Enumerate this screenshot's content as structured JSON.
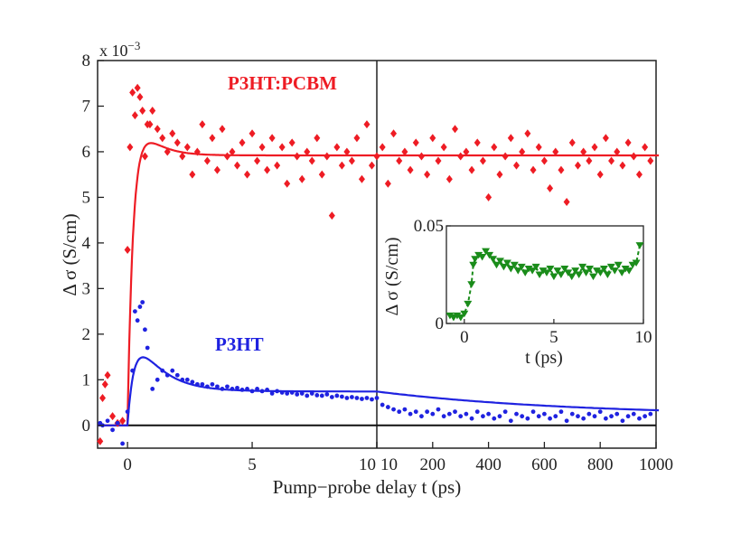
{
  "chart_data": {
    "type": "scatter",
    "multiplier": "x 10",
    "multiplier_exp": "−3",
    "ylabel": "Δ σ (S/cm)",
    "xlabel": "Pump−probe delay t (ps)",
    "ylim": [
      -0.5,
      8
    ],
    "y_ticks": [
      "0",
      "1",
      "2",
      "3",
      "4",
      "5",
      "6",
      "7",
      "8"
    ],
    "panels": [
      {
        "xlim": [
          -1.2,
          10
        ],
        "x_ticks": [
          {
            "v": 0,
            "label": "0"
          },
          {
            "v": 5,
            "label": "5"
          },
          {
            "v": 10,
            "label": "10"
          }
        ]
      },
      {
        "xlim": [
          0,
          1000
        ],
        "x_ticks": [
          {
            "v": 0,
            "label": "10"
          },
          {
            "v": 200,
            "label": "200"
          },
          {
            "v": 400,
            "label": "400"
          },
          {
            "v": 600,
            "label": "600"
          },
          {
            "v": 800,
            "label": "800"
          },
          {
            "v": 1000,
            "label": "1000"
          }
        ]
      }
    ],
    "series": [
      {
        "name": "P3HT:PCBM",
        "color": "#ee1c24",
        "marker": "diamond",
        "points_short": [
          [
            -1.1,
            -0.35
          ],
          [
            -1.0,
            0.6
          ],
          [
            -0.9,
            0.9
          ],
          [
            -0.8,
            1.1
          ],
          [
            -0.6,
            0.2
          ],
          [
            -0.4,
            0.05
          ],
          [
            -0.2,
            0.1
          ],
          [
            0.0,
            3.85
          ],
          [
            0.1,
            6.1
          ],
          [
            0.2,
            7.3
          ],
          [
            0.3,
            6.8
          ],
          [
            0.4,
            7.4
          ],
          [
            0.5,
            7.2
          ],
          [
            0.6,
            6.9
          ],
          [
            0.7,
            5.9
          ],
          [
            0.8,
            6.6
          ],
          [
            0.9,
            6.6
          ],
          [
            1.0,
            6.9
          ],
          [
            1.2,
            6.5
          ],
          [
            1.4,
            6.3
          ],
          [
            1.6,
            6.0
          ],
          [
            1.8,
            6.4
          ],
          [
            2.0,
            6.2
          ],
          [
            2.2,
            5.9
          ],
          [
            2.4,
            6.1
          ],
          [
            2.6,
            5.5
          ],
          [
            2.8,
            6.0
          ],
          [
            3.0,
            6.6
          ],
          [
            3.2,
            5.8
          ],
          [
            3.4,
            6.3
          ],
          [
            3.6,
            5.6
          ],
          [
            3.8,
            6.5
          ],
          [
            4.0,
            5.9
          ],
          [
            4.2,
            6.0
          ],
          [
            4.4,
            5.7
          ],
          [
            4.6,
            6.2
          ],
          [
            4.8,
            5.5
          ],
          [
            5.0,
            6.4
          ],
          [
            5.2,
            5.8
          ],
          [
            5.4,
            6.1
          ],
          [
            5.6,
            5.6
          ],
          [
            5.8,
            6.3
          ],
          [
            6.0,
            5.7
          ],
          [
            6.2,
            6.1
          ],
          [
            6.4,
            5.3
          ],
          [
            6.6,
            6.2
          ],
          [
            6.8,
            5.9
          ],
          [
            7.0,
            5.4
          ],
          [
            7.2,
            6.0
          ],
          [
            7.4,
            5.8
          ],
          [
            7.6,
            6.3
          ],
          [
            7.8,
            5.5
          ],
          [
            8.0,
            5.9
          ],
          [
            8.2,
            4.6
          ],
          [
            8.4,
            6.1
          ],
          [
            8.6,
            5.7
          ],
          [
            8.8,
            6.0
          ],
          [
            9.0,
            5.8
          ],
          [
            9.2,
            6.3
          ],
          [
            9.4,
            5.4
          ],
          [
            9.6,
            6.6
          ],
          [
            9.8,
            5.7
          ]
        ],
        "points_long": [
          [
            0,
            5.9
          ],
          [
            20,
            6.1
          ],
          [
            40,
            5.3
          ],
          [
            60,
            6.4
          ],
          [
            80,
            5.8
          ],
          [
            100,
            6.0
          ],
          [
            120,
            5.6
          ],
          [
            140,
            6.2
          ],
          [
            160,
            5.9
          ],
          [
            180,
            5.5
          ],
          [
            200,
            6.3
          ],
          [
            220,
            5.8
          ],
          [
            240,
            6.1
          ],
          [
            260,
            5.4
          ],
          [
            280,
            6.5
          ],
          [
            300,
            5.9
          ],
          [
            320,
            6.0
          ],
          [
            340,
            5.6
          ],
          [
            360,
            6.2
          ],
          [
            380,
            5.8
          ],
          [
            400,
            5.0
          ],
          [
            420,
            6.1
          ],
          [
            440,
            5.5
          ],
          [
            460,
            5.9
          ],
          [
            480,
            6.3
          ],
          [
            500,
            5.7
          ],
          [
            520,
            6.0
          ],
          [
            540,
            6.4
          ],
          [
            560,
            5.6
          ],
          [
            580,
            6.1
          ],
          [
            600,
            5.8
          ],
          [
            620,
            5.2
          ],
          [
            640,
            6.0
          ],
          [
            660,
            5.6
          ],
          [
            680,
            4.9
          ],
          [
            700,
            6.2
          ],
          [
            720,
            5.7
          ],
          [
            740,
            6.0
          ],
          [
            760,
            5.8
          ],
          [
            780,
            6.1
          ],
          [
            800,
            5.5
          ],
          [
            820,
            6.3
          ],
          [
            840,
            5.8
          ],
          [
            860,
            6.0
          ],
          [
            880,
            5.7
          ],
          [
            900,
            6.2
          ],
          [
            920,
            5.9
          ],
          [
            940,
            5.5
          ],
          [
            960,
            6.1
          ],
          [
            980,
            5.8
          ]
        ],
        "fit_params": {
          "tau_rise": 0.25,
          "A": 1.6,
          "tau_decay": 0.7,
          "offset": 5.92
        }
      },
      {
        "name": "P3HT",
        "color": "#1f22e0",
        "marker": "dot",
        "points_short": [
          [
            -1.1,
            0.05
          ],
          [
            -1.0,
            0.0
          ],
          [
            -0.8,
            0.1
          ],
          [
            -0.6,
            -0.1
          ],
          [
            -0.4,
            0.05
          ],
          [
            -0.2,
            -0.4
          ],
          [
            0.0,
            0.3
          ],
          [
            0.2,
            1.2
          ],
          [
            0.3,
            2.5
          ],
          [
            0.4,
            2.3
          ],
          [
            0.5,
            2.6
          ],
          [
            0.6,
            2.7
          ],
          [
            0.7,
            2.1
          ],
          [
            0.8,
            1.7
          ],
          [
            1.0,
            0.8
          ],
          [
            1.2,
            1.0
          ],
          [
            1.4,
            1.2
          ],
          [
            1.6,
            1.1
          ],
          [
            1.8,
            1.2
          ],
          [
            2.0,
            1.1
          ],
          [
            2.2,
            1.0
          ],
          [
            2.4,
            1.0
          ],
          [
            2.6,
            0.95
          ],
          [
            2.8,
            0.9
          ],
          [
            3.0,
            0.9
          ],
          [
            3.2,
            0.85
          ],
          [
            3.4,
            0.9
          ],
          [
            3.6,
            0.85
          ],
          [
            3.8,
            0.8
          ],
          [
            4.0,
            0.85
          ],
          [
            4.2,
            0.8
          ],
          [
            4.4,
            0.82
          ],
          [
            4.6,
            0.78
          ],
          [
            4.8,
            0.8
          ],
          [
            5.0,
            0.75
          ],
          [
            5.2,
            0.8
          ],
          [
            5.4,
            0.75
          ],
          [
            5.6,
            0.78
          ],
          [
            5.8,
            0.7
          ],
          [
            6.0,
            0.75
          ],
          [
            6.2,
            0.72
          ],
          [
            6.4,
            0.7
          ],
          [
            6.6,
            0.72
          ],
          [
            6.8,
            0.68
          ],
          [
            7.0,
            0.7
          ],
          [
            7.2,
            0.65
          ],
          [
            7.4,
            0.7
          ],
          [
            7.6,
            0.66
          ],
          [
            7.8,
            0.65
          ],
          [
            8.0,
            0.68
          ],
          [
            8.2,
            0.62
          ],
          [
            8.4,
            0.65
          ],
          [
            8.6,
            0.63
          ],
          [
            8.8,
            0.6
          ],
          [
            9.0,
            0.62
          ],
          [
            9.2,
            0.6
          ],
          [
            9.4,
            0.58
          ],
          [
            9.6,
            0.6
          ],
          [
            9.8,
            0.57
          ]
        ],
        "points_long": [
          [
            0,
            0.6
          ],
          [
            20,
            0.45
          ],
          [
            40,
            0.4
          ],
          [
            60,
            0.35
          ],
          [
            80,
            0.3
          ],
          [
            100,
            0.35
          ],
          [
            120,
            0.25
          ],
          [
            140,
            0.3
          ],
          [
            160,
            0.2
          ],
          [
            180,
            0.3
          ],
          [
            200,
            0.25
          ],
          [
            220,
            0.35
          ],
          [
            240,
            0.2
          ],
          [
            260,
            0.25
          ],
          [
            280,
            0.3
          ],
          [
            300,
            0.2
          ],
          [
            320,
            0.25
          ],
          [
            340,
            0.15
          ],
          [
            360,
            0.3
          ],
          [
            380,
            0.2
          ],
          [
            400,
            0.25
          ],
          [
            420,
            0.15
          ],
          [
            440,
            0.2
          ],
          [
            460,
            0.3
          ],
          [
            480,
            0.1
          ],
          [
            500,
            0.25
          ],
          [
            520,
            0.2
          ],
          [
            540,
            0.15
          ],
          [
            560,
            0.3
          ],
          [
            580,
            0.2
          ],
          [
            600,
            0.25
          ],
          [
            620,
            0.15
          ],
          [
            640,
            0.2
          ],
          [
            660,
            0.3
          ],
          [
            680,
            0.1
          ],
          [
            700,
            0.25
          ],
          [
            720,
            0.2
          ],
          [
            740,
            0.15
          ],
          [
            760,
            0.25
          ],
          [
            780,
            0.2
          ],
          [
            800,
            0.3
          ],
          [
            820,
            0.15
          ],
          [
            840,
            0.2
          ],
          [
            860,
            0.25
          ],
          [
            880,
            0.1
          ],
          [
            900,
            0.2
          ],
          [
            920,
            0.25
          ],
          [
            940,
            0.15
          ],
          [
            960,
            0.2
          ],
          [
            980,
            0.25
          ]
        ],
        "fit_params": {
          "tau_rise": 0.35,
          "A": 1.95,
          "tau_decay": 1.0,
          "B": 0.75,
          "tau_slow": 700,
          "offset": 0.2
        }
      }
    ],
    "inset": {
      "type": "scatter",
      "xlabel": "t (ps)",
      "ylabel": "Δ σ (S/cm)",
      "xlim": [
        -1,
        10
      ],
      "ylim": [
        0,
        0.05
      ],
      "x_ticks": [
        "0",
        "5",
        "10"
      ],
      "y_ticks": [
        "0",
        "0.05"
      ],
      "color": "#1a8c1a",
      "marker": "triangle-down",
      "points": [
        [
          -0.8,
          0.004
        ],
        [
          -0.6,
          0.003
        ],
        [
          -0.4,
          0.004
        ],
        [
          -0.2,
          0.003
        ],
        [
          0.0,
          0.005
        ],
        [
          0.2,
          0.01
        ],
        [
          0.4,
          0.02
        ],
        [
          0.5,
          0.03
        ],
        [
          0.6,
          0.033
        ],
        [
          0.8,
          0.035
        ],
        [
          1.0,
          0.034
        ],
        [
          1.2,
          0.037
        ],
        [
          1.4,
          0.035
        ],
        [
          1.6,
          0.033
        ],
        [
          1.8,
          0.03
        ],
        [
          2.0,
          0.032
        ],
        [
          2.2,
          0.029
        ],
        [
          2.4,
          0.031
        ],
        [
          2.6,
          0.028
        ],
        [
          2.8,
          0.03
        ],
        [
          3.0,
          0.027
        ],
        [
          3.2,
          0.029
        ],
        [
          3.4,
          0.026
        ],
        [
          3.6,
          0.028
        ],
        [
          3.8,
          0.027
        ],
        [
          4.0,
          0.029
        ],
        [
          4.2,
          0.025
        ],
        [
          4.4,
          0.027
        ],
        [
          4.6,
          0.026
        ],
        [
          4.8,
          0.028
        ],
        [
          5.0,
          0.024
        ],
        [
          5.2,
          0.027
        ],
        [
          5.4,
          0.025
        ],
        [
          5.6,
          0.028
        ],
        [
          5.8,
          0.026
        ],
        [
          6.0,
          0.024
        ],
        [
          6.2,
          0.027
        ],
        [
          6.4,
          0.025
        ],
        [
          6.6,
          0.029
        ],
        [
          6.8,
          0.026
        ],
        [
          7.0,
          0.028
        ],
        [
          7.2,
          0.024
        ],
        [
          7.4,
          0.027
        ],
        [
          7.6,
          0.026
        ],
        [
          7.8,
          0.028
        ],
        [
          8.0,
          0.025
        ],
        [
          8.2,
          0.029
        ],
        [
          8.4,
          0.027
        ],
        [
          8.6,
          0.03
        ],
        [
          8.8,
          0.026
        ],
        [
          9.0,
          0.028
        ],
        [
          9.2,
          0.027
        ],
        [
          9.4,
          0.03
        ],
        [
          9.6,
          0.031
        ],
        [
          9.8,
          0.04
        ]
      ]
    }
  }
}
